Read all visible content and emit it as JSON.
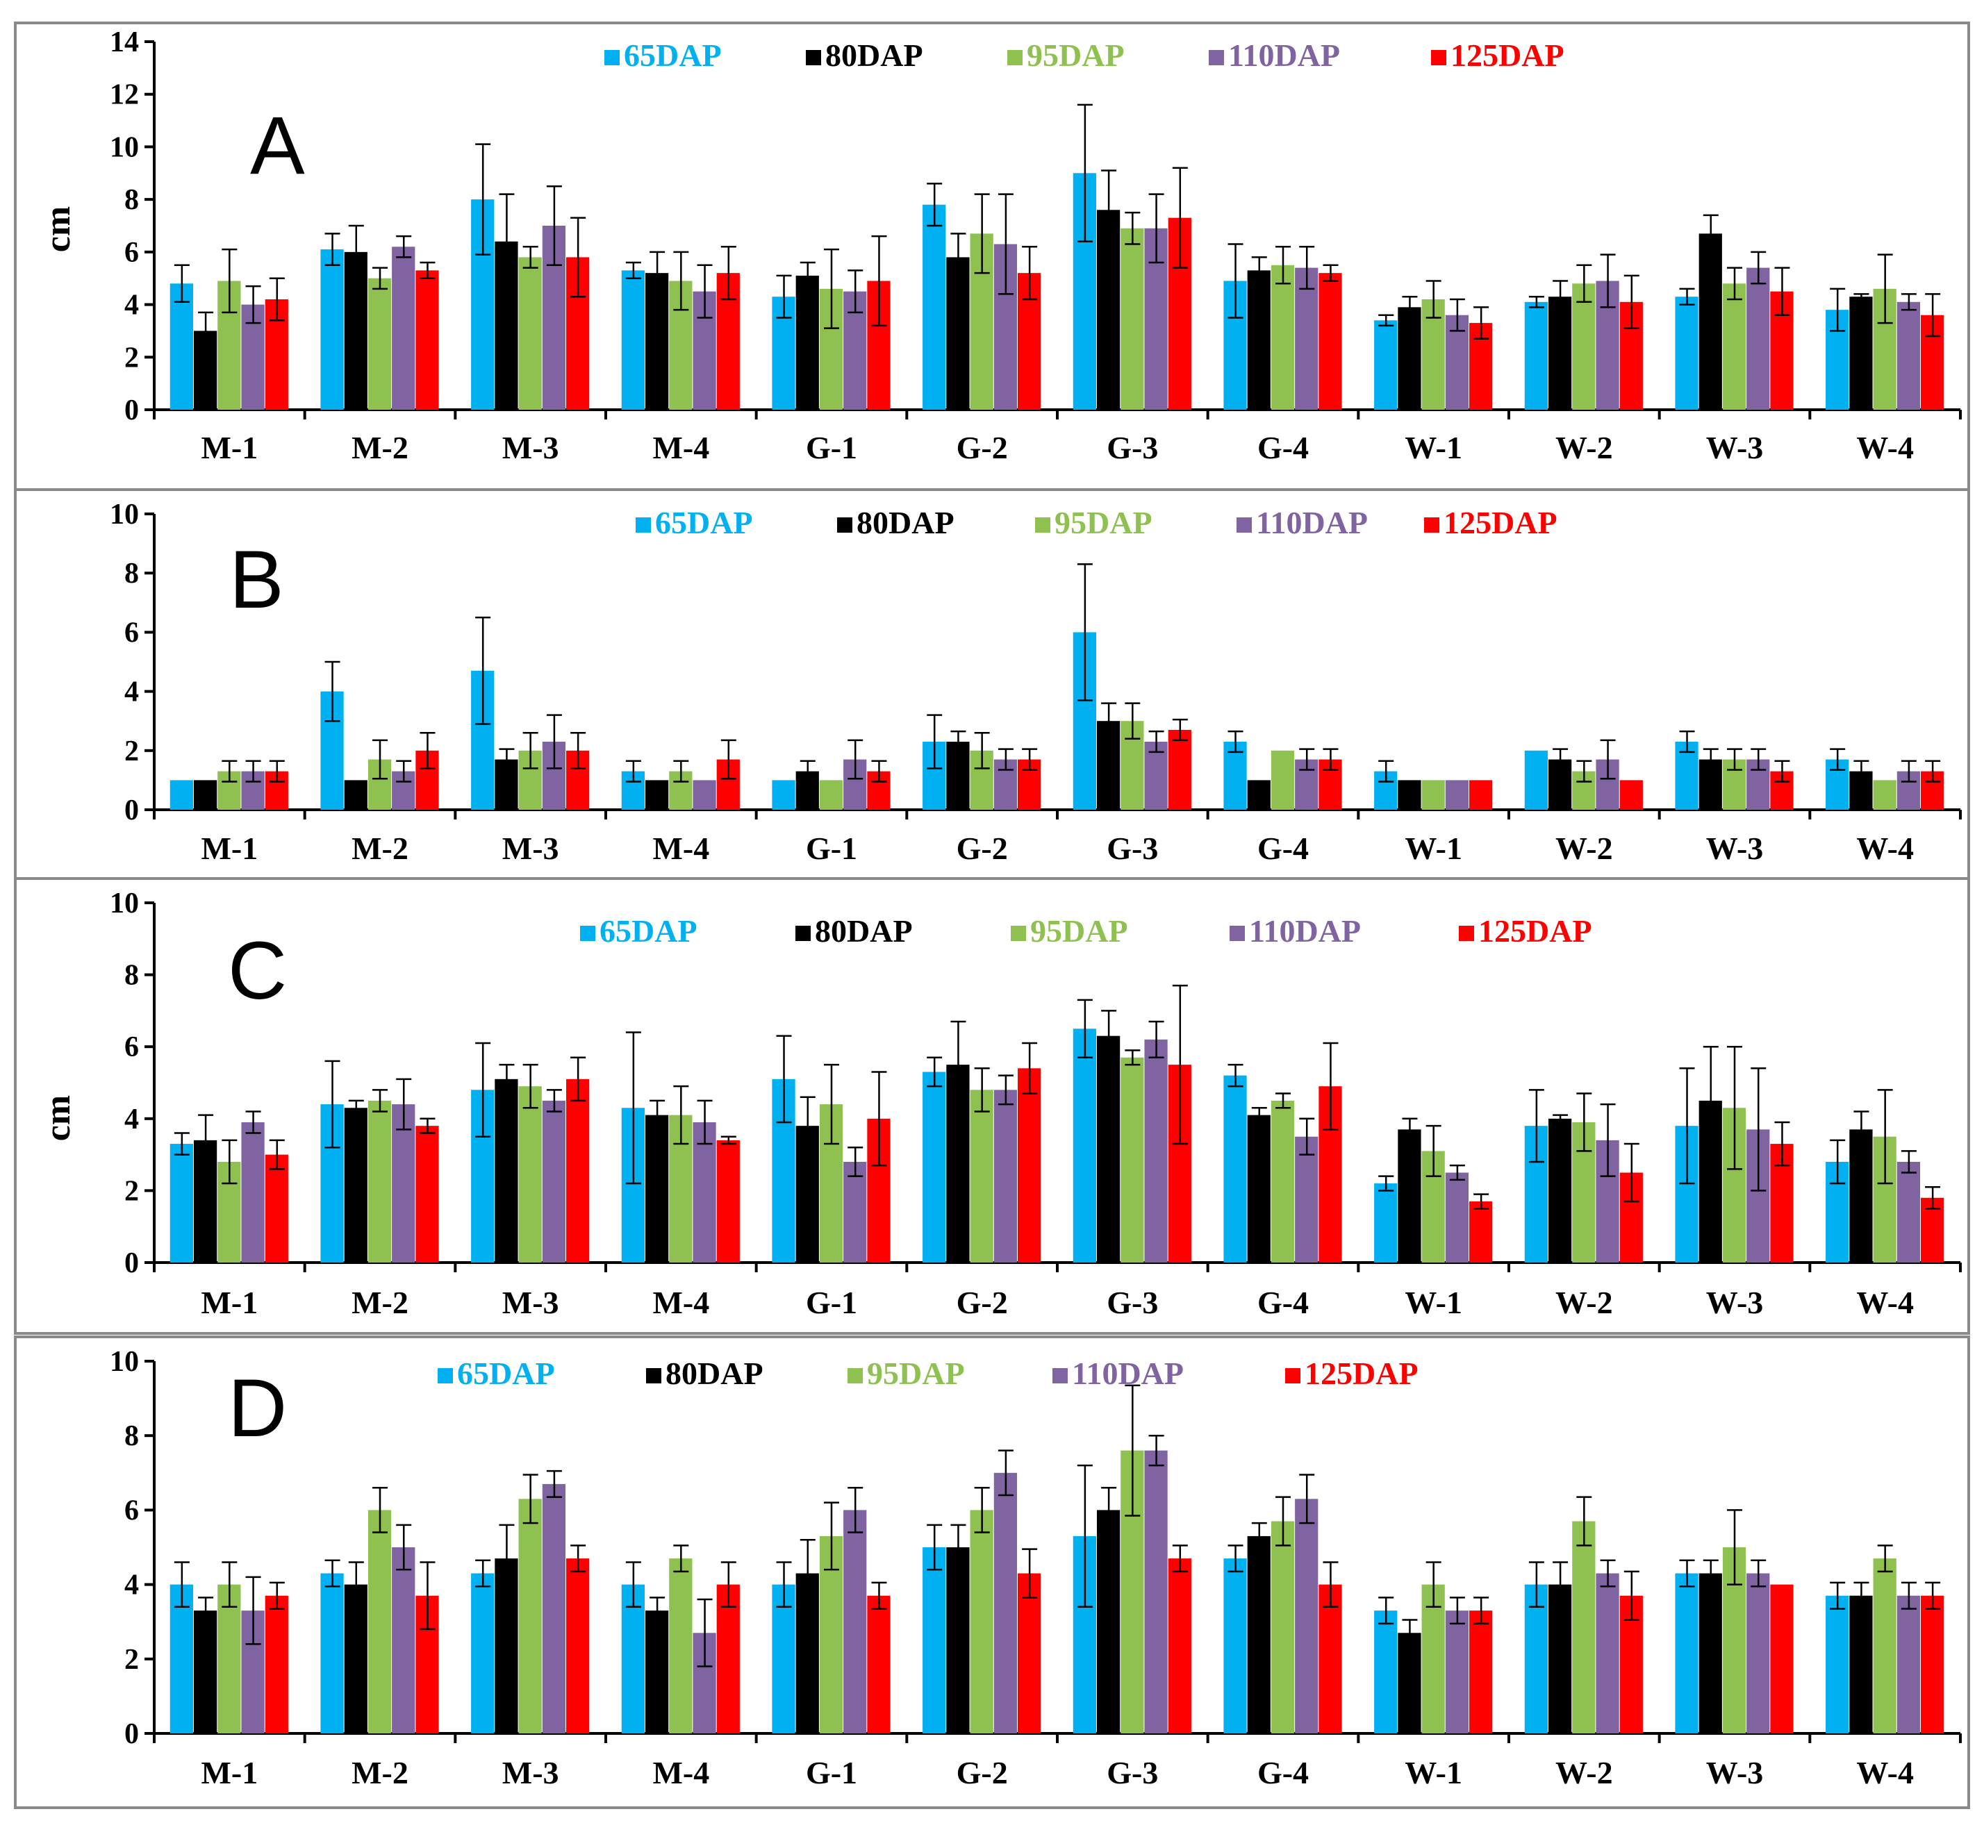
{
  "chart_data": [
    {
      "type": "bar",
      "panel": "A",
      "ylabel": "cm",
      "ylim": [
        0,
        14
      ],
      "yticks": [
        0,
        2,
        4,
        6,
        8,
        10,
        12,
        14
      ],
      "categories": [
        "M-1",
        "M-2",
        "M-3",
        "M-4",
        "G-1",
        "G-2",
        "G-3",
        "G-4",
        "W-1",
        "W-2",
        "W-3",
        "W-4"
      ],
      "series": [
        {
          "name": "65DAP",
          "color": "#00b0f0",
          "values": [
            4.8,
            6.1,
            8.0,
            5.3,
            4.3,
            7.8,
            9.0,
            4.9,
            3.4,
            4.1,
            4.3,
            3.8
          ],
          "errors": [
            0.7,
            0.6,
            2.1,
            0.3,
            0.8,
            0.8,
            2.6,
            1.4,
            0.2,
            0.2,
            0.3,
            0.8
          ]
        },
        {
          "name": "80DAP",
          "color": "#000000",
          "values": [
            3.0,
            6.0,
            6.4,
            5.2,
            5.1,
            5.8,
            7.6,
            5.3,
            3.9,
            4.3,
            6.7,
            4.3
          ],
          "errors": [
            0.7,
            1.0,
            1.8,
            0.8,
            0.5,
            0.9,
            1.5,
            0.5,
            0.4,
            0.6,
            0.7,
            0.1
          ]
        },
        {
          "name": "95DAP",
          "color": "#8fc150",
          "values": [
            4.9,
            5.0,
            5.8,
            4.9,
            4.6,
            6.7,
            6.9,
            5.5,
            4.2,
            4.8,
            4.8,
            4.6
          ],
          "errors": [
            1.2,
            0.4,
            0.4,
            1.1,
            1.5,
            1.5,
            0.6,
            0.7,
            0.7,
            0.7,
            0.6,
            1.3
          ]
        },
        {
          "name": "110DAP",
          "color": "#8064a2",
          "values": [
            4.0,
            6.2,
            7.0,
            4.5,
            4.5,
            6.3,
            6.9,
            5.4,
            3.6,
            4.9,
            5.4,
            4.1
          ],
          "errors": [
            0.7,
            0.4,
            1.5,
            1.0,
            0.8,
            1.9,
            1.3,
            0.8,
            0.6,
            1.0,
            0.6,
            0.3
          ]
        },
        {
          "name": "125DAP",
          "color": "#ff0000",
          "values": [
            4.2,
            5.3,
            5.8,
            5.2,
            4.9,
            5.2,
            7.3,
            5.2,
            3.3,
            4.1,
            4.5,
            3.6
          ],
          "errors": [
            0.8,
            0.3,
            1.5,
            1.0,
            1.7,
            1.0,
            1.9,
            0.3,
            0.6,
            1.0,
            0.9,
            0.8
          ]
        }
      ]
    },
    {
      "type": "bar",
      "panel": "B",
      "ylabel": "",
      "ylim": [
        0,
        10
      ],
      "yticks": [
        0,
        2,
        4,
        6,
        8,
        10
      ],
      "categories": [
        "M-1",
        "M-2",
        "M-3",
        "M-4",
        "G-1",
        "G-2",
        "G-3",
        "G-4",
        "W-1",
        "W-2",
        "W-3",
        "W-4"
      ],
      "series": [
        {
          "name": "65DAP",
          "color": "#00b0f0",
          "values": [
            1.0,
            4.0,
            4.7,
            1.3,
            1.0,
            2.3,
            6.0,
            2.3,
            1.3,
            2.0,
            2.3,
            1.7
          ],
          "errors": [
            0,
            1.0,
            1.8,
            0.35,
            0,
            0.9,
            2.3,
            0.35,
            0.35,
            0,
            0.35,
            0.35
          ]
        },
        {
          "name": "80DAP",
          "color": "#000000",
          "values": [
            1.0,
            1.0,
            1.7,
            1.0,
            1.3,
            2.3,
            3.0,
            1.0,
            1.0,
            1.7,
            1.7,
            1.3
          ],
          "errors": [
            0,
            0,
            0.35,
            0,
            0.35,
            0.35,
            0.6,
            0,
            0,
            0.35,
            0.35,
            0.35
          ]
        },
        {
          "name": "95DAP",
          "color": "#8fc150",
          "values": [
            1.3,
            1.7,
            2.0,
            1.3,
            1.0,
            2.0,
            3.0,
            2.0,
            1.0,
            1.3,
            1.7,
            1.0
          ],
          "errors": [
            0.35,
            0.65,
            0.6,
            0.35,
            0,
            0.6,
            0.6,
            0,
            0,
            0.35,
            0.35,
            0
          ]
        },
        {
          "name": "110DAP",
          "color": "#8064a2",
          "values": [
            1.3,
            1.3,
            2.3,
            1.0,
            1.7,
            1.7,
            2.3,
            1.7,
            1.0,
            1.7,
            1.7,
            1.3
          ],
          "errors": [
            0.35,
            0.35,
            0.9,
            0,
            0.65,
            0.35,
            0.35,
            0.35,
            0,
            0.65,
            0.35,
            0.35
          ]
        },
        {
          "name": "125DAP",
          "color": "#ff0000",
          "values": [
            1.3,
            2.0,
            2.0,
            1.7,
            1.3,
            1.7,
            2.7,
            1.7,
            1.0,
            1.0,
            1.3,
            1.3
          ],
          "errors": [
            0.35,
            0.6,
            0.6,
            0.65,
            0.35,
            0.35,
            0.35,
            0.35,
            0,
            0,
            0.35,
            0.35
          ]
        }
      ]
    },
    {
      "type": "bar",
      "panel": "C",
      "ylabel": "cm",
      "ylim": [
        0,
        10
      ],
      "yticks": [
        0,
        2,
        4,
        6,
        8,
        10
      ],
      "categories": [
        "M-1",
        "M-2",
        "M-3",
        "M-4",
        "G-1",
        "G-2",
        "G-3",
        "G-4",
        "W-1",
        "W-2",
        "W-3",
        "W-4"
      ],
      "series": [
        {
          "name": "65DAP",
          "color": "#00b0f0",
          "values": [
            3.3,
            4.4,
            4.8,
            4.3,
            5.1,
            5.3,
            6.5,
            5.2,
            2.2,
            3.8,
            3.8,
            2.8
          ],
          "errors": [
            0.3,
            1.2,
            1.3,
            2.1,
            1.2,
            0.4,
            0.8,
            0.3,
            0.2,
            1.0,
            1.6,
            0.6
          ]
        },
        {
          "name": "80DAP",
          "color": "#000000",
          "values": [
            3.4,
            4.3,
            5.1,
            4.1,
            3.8,
            5.5,
            6.3,
            4.1,
            3.7,
            4.0,
            4.5,
            3.7
          ],
          "errors": [
            0.7,
            0.2,
            0.4,
            0.4,
            0.8,
            1.2,
            0.7,
            0.2,
            0.3,
            0.1,
            1.5,
            0.5
          ]
        },
        {
          "name": "95DAP",
          "color": "#8fc150",
          "values": [
            2.8,
            4.5,
            4.9,
            4.1,
            4.4,
            4.8,
            5.7,
            4.5,
            3.1,
            3.9,
            4.3,
            3.5
          ],
          "errors": [
            0.6,
            0.3,
            0.6,
            0.8,
            1.1,
            0.6,
            0.2,
            0.2,
            0.7,
            0.8,
            1.7,
            1.3
          ]
        },
        {
          "name": "110DAP",
          "color": "#8064a2",
          "values": [
            3.9,
            4.4,
            4.5,
            3.9,
            2.8,
            4.8,
            6.2,
            3.5,
            2.5,
            3.4,
            3.7,
            2.8
          ],
          "errors": [
            0.3,
            0.7,
            0.3,
            0.6,
            0.4,
            0.4,
            0.5,
            0.5,
            0.2,
            1.0,
            1.7,
            0.3
          ]
        },
        {
          "name": "125DAP",
          "color": "#ff0000",
          "values": [
            3.0,
            3.8,
            5.1,
            3.4,
            4.0,
            5.4,
            5.5,
            4.9,
            1.7,
            2.5,
            3.3,
            1.8
          ],
          "errors": [
            0.4,
            0.2,
            0.6,
            0.1,
            1.3,
            0.7,
            2.2,
            1.2,
            0.2,
            0.8,
            0.6,
            0.3
          ]
        }
      ]
    },
    {
      "type": "bar",
      "panel": "D",
      "ylabel": "",
      "ylim": [
        0,
        10
      ],
      "yticks": [
        0,
        2,
        4,
        6,
        8,
        10
      ],
      "categories": [
        "M-1",
        "M-2",
        "M-3",
        "M-4",
        "G-1",
        "G-2",
        "G-3",
        "G-4",
        "W-1",
        "W-2",
        "W-3",
        "W-4"
      ],
      "series": [
        {
          "name": "65DAP",
          "color": "#00b0f0",
          "values": [
            4.0,
            4.3,
            4.3,
            4.0,
            4.0,
            5.0,
            5.3,
            4.7,
            3.3,
            4.0,
            4.3,
            3.7
          ],
          "errors": [
            0.6,
            0.35,
            0.35,
            0.6,
            0.6,
            0.6,
            1.9,
            0.35,
            0.35,
            0.6,
            0.35,
            0.35
          ]
        },
        {
          "name": "80DAP",
          "color": "#000000",
          "values": [
            3.3,
            4.0,
            4.7,
            3.3,
            4.3,
            5.0,
            6.0,
            5.3,
            2.7,
            4.0,
            4.3,
            3.7
          ],
          "errors": [
            0.35,
            0.6,
            0.9,
            0.35,
            0.9,
            0.6,
            0.6,
            0.35,
            0.35,
            0.6,
            0.35,
            0.35
          ]
        },
        {
          "name": "95DAP",
          "color": "#8fc150",
          "values": [
            4.0,
            6.0,
            6.3,
            4.7,
            5.3,
            6.0,
            7.6,
            5.7,
            4.0,
            5.7,
            5.0,
            4.7
          ],
          "errors": [
            0.6,
            0.6,
            0.65,
            0.35,
            0.9,
            0.6,
            1.75,
            0.65,
            0.6,
            0.65,
            1.0,
            0.35
          ]
        },
        {
          "name": "110DAP",
          "color": "#8064a2",
          "values": [
            3.3,
            5.0,
            6.7,
            2.7,
            6.0,
            7.0,
            7.6,
            6.3,
            3.3,
            4.3,
            4.3,
            3.7
          ],
          "errors": [
            0.9,
            0.6,
            0.35,
            0.9,
            0.6,
            0.6,
            0.4,
            0.65,
            0.35,
            0.35,
            0.35,
            0.35
          ]
        },
        {
          "name": "125DAP",
          "color": "#ff0000",
          "values": [
            3.7,
            3.7,
            4.7,
            4.0,
            3.7,
            4.3,
            4.7,
            4.0,
            3.3,
            3.7,
            4.0,
            3.7
          ],
          "errors": [
            0.35,
            0.9,
            0.35,
            0.6,
            0.35,
            0.65,
            0.35,
            0.6,
            0.35,
            0.65,
            0,
            0.35
          ]
        }
      ]
    }
  ]
}
